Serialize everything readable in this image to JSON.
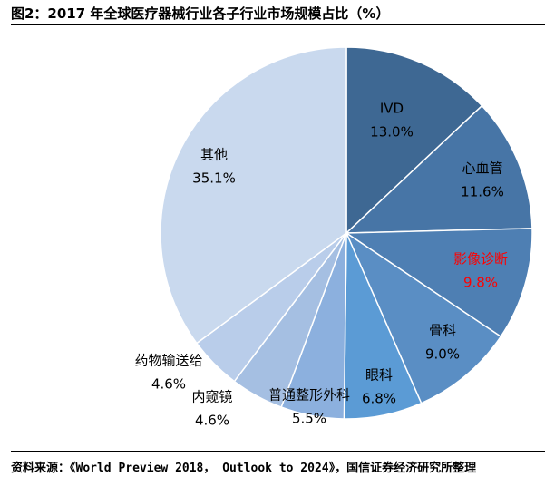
{
  "title": "图2：2017 年全球医疗器械行业各子行业市场规模占比（%）",
  "source": "资料来源：《World Preview 2018， Outlook to 2024》，国信证券经济研究所整理",
  "chart_data": {
    "type": "pie",
    "title": "",
    "start": "12 o'clock, clockwise",
    "slices": [
      {
        "label": "IVD",
        "value": 13.0,
        "display": "13.0%",
        "color": "#3e6893",
        "text_color": "#000000"
      },
      {
        "label": "心血管",
        "value": 11.6,
        "display": "11.6%",
        "color": "#4775a6",
        "text_color": "#000000"
      },
      {
        "label": "影像诊断",
        "value": 9.8,
        "display": "9.8%",
        "color": "#4e7fb3",
        "text_color": "#ff0000"
      },
      {
        "label": "骨科",
        "value": 9.0,
        "display": "9.0%",
        "color": "#5a8ec4",
        "text_color": "#000000"
      },
      {
        "label": "眼科",
        "value": 6.8,
        "display": "6.8%",
        "color": "#5b9bd5",
        "text_color": "#000000"
      },
      {
        "label": "普通整形外科",
        "value": 5.5,
        "display": "5.5%",
        "color": "#8cb0de",
        "text_color": "#000000"
      },
      {
        "label": "内窥镜",
        "value": 4.6,
        "display": "4.6%",
        "color": "#a5bfe2",
        "text_color": "#000000"
      },
      {
        "label": "药物输送给",
        "value": 4.6,
        "display": "4.6%",
        "color": "#b9cdea",
        "text_color": "#000000"
      },
      {
        "label": "其他",
        "value": 35.1,
        "display": "35.1%",
        "color": "#c9d9ee",
        "text_color": "#000000"
      }
    ]
  }
}
